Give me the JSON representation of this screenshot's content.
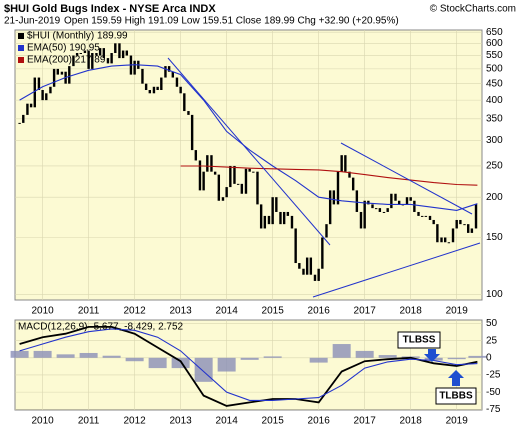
{
  "chart_data": [
    {
      "type": "ohlc",
      "title": "$HUI Gold Bugs Index - NYSE Arca INDX",
      "source": "© StockCharts.com",
      "date": "21-Jun-2019",
      "info": "Open 159.59 High 191.09 Low 159.51 Close 189.99 Chg +32.90 (+20.95%)",
      "log_scale": true,
      "grid": true,
      "xlim": [
        2009.4,
        2019.55
      ],
      "xticks": [
        2010,
        2011,
        2012,
        2013,
        2014,
        2015,
        2016,
        2017,
        2018,
        2019
      ],
      "ylim": [
        96,
        660
      ],
      "yticks": [
        100,
        150,
        200,
        250,
        300,
        350,
        400,
        450,
        500,
        550,
        600,
        650
      ],
      "series": [
        {
          "name": "$HUI (Monthly) 189.99",
          "style": "bars",
          "color": "#000000",
          "x": [
            2009.5,
            2009.58,
            2009.67,
            2009.75,
            2009.83,
            2009.92,
            2010.0,
            2010.08,
            2010.17,
            2010.25,
            2010.33,
            2010.42,
            2010.5,
            2010.58,
            2010.67,
            2010.75,
            2010.83,
            2010.92,
            2011.0,
            2011.08,
            2011.17,
            2011.25,
            2011.33,
            2011.42,
            2011.5,
            2011.58,
            2011.67,
            2011.75,
            2011.83,
            2011.92,
            2012.0,
            2012.08,
            2012.17,
            2012.25,
            2012.33,
            2012.42,
            2012.5,
            2012.58,
            2012.67,
            2012.75,
            2012.83,
            2012.92,
            2013.0,
            2013.08,
            2013.17,
            2013.25,
            2013.33,
            2013.42,
            2013.5,
            2013.58,
            2013.67,
            2013.75,
            2013.83,
            2013.92,
            2014.0,
            2014.08,
            2014.17,
            2014.25,
            2014.33,
            2014.42,
            2014.5,
            2014.58,
            2014.67,
            2014.75,
            2014.83,
            2014.92,
            2015.0,
            2015.08,
            2015.17,
            2015.25,
            2015.33,
            2015.42,
            2015.5,
            2015.58,
            2015.67,
            2015.75,
            2015.83,
            2015.92,
            2016.0,
            2016.08,
            2016.17,
            2016.25,
            2016.33,
            2016.42,
            2016.5,
            2016.58,
            2016.67,
            2016.75,
            2016.83,
            2016.92,
            2017.0,
            2017.08,
            2017.17,
            2017.25,
            2017.33,
            2017.42,
            2017.5,
            2017.58,
            2017.67,
            2017.75,
            2017.83,
            2017.92,
            2018.0,
            2018.08,
            2018.17,
            2018.25,
            2018.33,
            2018.42,
            2018.5,
            2018.58,
            2018.67,
            2018.75,
            2018.83,
            2018.92,
            2019.0,
            2019.08,
            2019.17,
            2019.25,
            2019.33,
            2019.42
          ],
          "values": [
            340,
            360,
            390,
            380,
            470,
            430,
            400,
            420,
            440,
            500,
            480,
            490,
            450,
            510,
            550,
            560,
            560,
            570,
            500,
            560,
            550,
            580,
            540,
            520,
            560,
            600,
            540,
            570,
            550,
            480,
            530,
            500,
            450,
            430,
            420,
            440,
            430,
            470,
            510,
            490,
            470,
            440,
            420,
            370,
            360,
            280,
            260,
            210,
            240,
            270,
            240,
            235,
            195,
            200,
            215,
            250,
            220,
            220,
            205,
            245,
            240,
            240,
            190,
            160,
            175,
            165,
            200,
            180,
            165,
            180,
            175,
            160,
            125,
            120,
            115,
            130,
            115,
            110,
            120,
            150,
            165,
            210,
            190,
            240,
            270,
            240,
            230,
            210,
            180,
            160,
            195,
            190,
            185,
            185,
            180,
            180,
            185,
            205,
            195,
            190,
            190,
            200,
            195,
            180,
            175,
            175,
            175,
            170,
            165,
            145,
            150,
            145,
            145,
            160,
            170,
            165,
            165,
            155,
            160,
            189.99
          ]
        },
        {
          "name": "EMA(50) 190.95",
          "style": "line",
          "color": "#2233cc",
          "x": [
            2009.5,
            2010,
            2010.5,
            2011,
            2011.5,
            2012,
            2012.5,
            2013,
            2013.5,
            2014,
            2014.5,
            2015,
            2015.5,
            2016,
            2016.5,
            2017,
            2017.5,
            2018,
            2018.5,
            2019,
            2019.45
          ],
          "values": [
            400,
            440,
            470,
            495,
            510,
            515,
            510,
            480,
            400,
            320,
            280,
            250,
            225,
            200,
            195,
            192,
            190,
            190,
            186,
            182,
            190.95
          ]
        },
        {
          "name": "EMA(200) 217.89",
          "style": "line",
          "color": "#b01010",
          "x": [
            2013,
            2013.5,
            2014,
            2014.5,
            2015,
            2015.5,
            2016,
            2016.5,
            2017,
            2017.5,
            2018,
            2018.5,
            2019,
            2019.45
          ],
          "values": [
            250,
            250,
            248,
            246,
            245,
            244,
            243,
            240,
            235,
            230,
            226,
            222,
            219,
            217.89
          ]
        }
      ]
    },
    {
      "type": "macd",
      "title": "MACD(12,26,9) -5.677, -8.429, 2.752",
      "annotations": [
        "TLBSS",
        "TLBBS"
      ],
      "grid": true,
      "xlim": [
        2009.4,
        2019.55
      ],
      "xticks": [
        2010,
        2011,
        2012,
        2013,
        2014,
        2015,
        2016,
        2017,
        2018,
        2019
      ],
      "ylim": [
        -76,
        55
      ],
      "yticks": [
        50,
        25,
        0,
        -25,
        -50,
        -75
      ],
      "series": [
        {
          "style": "histogram",
          "color": "#8a8fb8",
          "x": [
            2009.5,
            2010,
            2010.5,
            2011,
            2011.5,
            2012,
            2012.5,
            2013,
            2013.5,
            2014,
            2014.5,
            2015,
            2015.5,
            2016,
            2016.5,
            2017,
            2017.5,
            2018,
            2018.5,
            2019,
            2019.45
          ],
          "values": [
            10,
            10,
            5,
            7,
            3,
            -5,
            -15,
            -15,
            -35,
            -20,
            -3,
            2,
            0,
            -7,
            20,
            10,
            4,
            2,
            -4,
            -2,
            2.752
          ]
        },
        {
          "style": "line",
          "color": "#000000",
          "x": [
            2009.5,
            2010,
            2010.5,
            2011,
            2011.5,
            2012,
            2012.5,
            2013,
            2013.5,
            2014,
            2014.5,
            2015,
            2015.5,
            2016,
            2016.5,
            2017,
            2017.5,
            2018,
            2018.5,
            2019,
            2019.45
          ],
          "values": [
            20,
            30,
            35,
            45,
            45,
            35,
            15,
            -5,
            -55,
            -70,
            -65,
            -60,
            -60,
            -65,
            -20,
            -5,
            -2,
            0,
            -8,
            -12,
            -5.677
          ]
        },
        {
          "style": "line",
          "color": "#2233cc",
          "x": [
            2009.5,
            2010,
            2010.5,
            2011,
            2011.5,
            2012,
            2012.5,
            2013,
            2013.5,
            2014,
            2014.5,
            2015,
            2015.5,
            2016,
            2016.5,
            2017,
            2017.5,
            2018,
            2018.5,
            2019,
            2019.45
          ],
          "values": [
            10,
            20,
            30,
            38,
            42,
            40,
            30,
            10,
            -20,
            -50,
            -62,
            -62,
            -60,
            -58,
            -40,
            -15,
            -6,
            -2,
            -4,
            -10,
            -8.429
          ]
        }
      ]
    }
  ]
}
